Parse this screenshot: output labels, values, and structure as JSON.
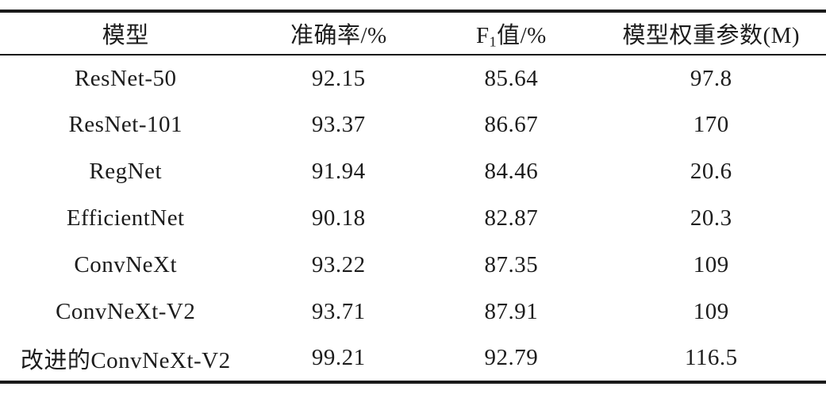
{
  "table": {
    "style": "three-line academic table",
    "rule_color": "#1a1a1a",
    "text_color": "#1c1c1c",
    "header": {
      "col1": "模型",
      "col2": "准确率/%",
      "col3_prefix": "F",
      "col3_sub": "1",
      "col3_suffix": "值/%",
      "col4": "模型权重参数(M)"
    },
    "rows": [
      {
        "model": "ResNet-50",
        "accuracy": "92.15",
        "f1": "85.64",
        "params": "97.8"
      },
      {
        "model": "ResNet-101",
        "accuracy": "93.37",
        "f1": "86.67",
        "params": "170"
      },
      {
        "model": "RegNet",
        "accuracy": "91.94",
        "f1": "84.46",
        "params": "20.6"
      },
      {
        "model": "EfficientNet",
        "accuracy": "90.18",
        "f1": "82.87",
        "params": "20.3"
      },
      {
        "model": "ConvNeXt",
        "accuracy": "93.22",
        "f1": "87.35",
        "params": "109"
      },
      {
        "model": "ConvNeXt-V2",
        "accuracy": "93.71",
        "f1": "87.91",
        "params": "109"
      },
      {
        "model": "改进的ConvNeXt-V2",
        "accuracy": "99.21",
        "f1": "92.79",
        "params": "116.5"
      }
    ]
  },
  "chart_data": {
    "type": "table",
    "columns": [
      "模型",
      "准确率/%",
      "F1值/%",
      "模型权重参数(M)"
    ],
    "rows": [
      [
        "ResNet-50",
        92.15,
        85.64,
        97.8
      ],
      [
        "ResNet-101",
        93.37,
        86.67,
        170
      ],
      [
        "RegNet",
        91.94,
        84.46,
        20.6
      ],
      [
        "EfficientNet",
        90.18,
        82.87,
        20.3
      ],
      [
        "ConvNeXt",
        93.22,
        87.35,
        109
      ],
      [
        "ConvNeXt-V2",
        93.71,
        87.91,
        109
      ],
      [
        "改进的ConvNeXt-V2",
        99.21,
        92.79,
        116.5
      ]
    ]
  }
}
